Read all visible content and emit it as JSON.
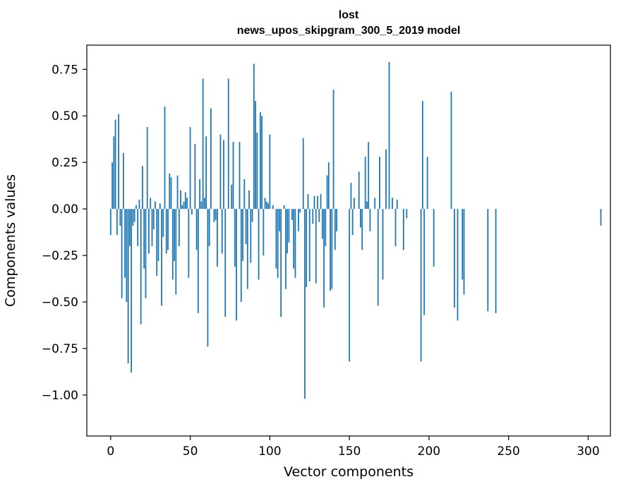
{
  "chart_data": {
    "type": "bar",
    "title_lines": [
      "lost",
      "news_upos_skipgram_300_5_2019 model"
    ],
    "xlabel": "Vector components",
    "ylabel": "Components values",
    "xlim": [
      -15,
      314
    ],
    "ylim": [
      -1.22,
      0.88
    ],
    "xticks": [
      0,
      50,
      100,
      150,
      200,
      250,
      300
    ],
    "xtick_labels": [
      "0",
      "50",
      "100",
      "150",
      "200",
      "250",
      "300"
    ],
    "yticks": [
      -1.0,
      -0.75,
      -0.5,
      -0.25,
      0.0,
      0.25,
      0.5,
      0.75
    ],
    "ytick_labels": [
      "−1.00",
      "−0.75",
      "−0.50",
      "−0.25",
      "0.00",
      "0.25",
      "0.50",
      "0.75"
    ],
    "bar_color": "#1f77b4",
    "grid": false,
    "values": [
      -0.14,
      0.25,
      0.39,
      0.48,
      -0.14,
      0.51,
      -0.09,
      -0.48,
      0.3,
      -0.37,
      -0.5,
      -0.83,
      -0.2,
      -0.88,
      -0.09,
      -0.07,
      0.02,
      -0.2,
      0.05,
      -0.62,
      0.23,
      -0.32,
      -0.48,
      0.44,
      -0.24,
      0.06,
      -0.2,
      -0.11,
      0.04,
      -0.36,
      -0.28,
      0.03,
      -0.52,
      -0.15,
      0.55,
      -0.24,
      -0.22,
      0.19,
      0.17,
      -0.38,
      -0.28,
      -0.46,
      0.18,
      -0.2,
      0.1,
      0.02,
      0.04,
      0.09,
      0.06,
      -0.37,
      0.44,
      -0.03,
      0.0,
      0.35,
      -0.22,
      -0.56,
      0.16,
      0.04,
      0.7,
      0.06,
      0.39,
      -0.74,
      -0.2,
      0.54,
      0.0,
      -0.07,
      -0.06,
      -0.31,
      0.0,
      0.4,
      -0.24,
      0.37,
      -0.58,
      0.0,
      0.7,
      0.0,
      0.13,
      0.36,
      -0.31,
      -0.6,
      0.0,
      0.36,
      -0.5,
      -0.28,
      0.16,
      -0.19,
      -0.43,
      0.1,
      -0.29,
      -0.07,
      0.78,
      0.58,
      0.41,
      -0.38,
      0.52,
      0.5,
      -0.25,
      0.06,
      0.04,
      0.03,
      0.4,
      0.0,
      0.02,
      0.0,
      -0.32,
      -0.37,
      -0.12,
      -0.58,
      0.0,
      0.02,
      -0.43,
      -0.24,
      -0.18,
      0.0,
      -0.06,
      -0.32,
      -0.37,
      0.0,
      -0.12,
      -0.02,
      0.0,
      0.38,
      -1.02,
      -0.42,
      0.08,
      -0.39,
      0.0,
      -0.08,
      0.07,
      -0.4,
      0.07,
      -0.07,
      0.08,
      -0.16,
      -0.53,
      -0.2,
      0.18,
      0.25,
      -0.44,
      -0.43,
      0.64,
      -0.22,
      -0.12,
      0.0,
      0.0,
      0.0,
      0.0,
      0.0,
      0.0,
      0.0,
      -0.82,
      0.14,
      -0.14,
      0.06,
      0.0,
      0.0,
      0.2,
      -0.1,
      -0.22,
      0.0,
      0.28,
      0.04,
      0.36,
      -0.12,
      0.0,
      0.0,
      0.06,
      0.0,
      -0.52,
      0.28,
      0.0,
      -0.38,
      0.0,
      0.32,
      0.0,
      0.79,
      0.0,
      0.06,
      0.0,
      -0.2,
      0.05,
      0.0,
      0.0,
      0.0,
      -0.22,
      0.0,
      -0.05,
      0.0,
      0.0,
      0.0,
      0.0,
      0.0,
      0.0,
      0.0,
      0.0,
      -0.82,
      0.58,
      -0.57,
      0.0,
      0.28,
      0.0,
      0.0,
      0.0,
      -0.31,
      0.0,
      0.0,
      0.0,
      0.0,
      0.0,
      0.0,
      0.0,
      0.0,
      0.0,
      0.0,
      0.63,
      0.0,
      -0.53,
      0.0,
      -0.6,
      0.0,
      0.0,
      -0.38,
      -0.46,
      0.0,
      0.0,
      0.0,
      0.0,
      0.0,
      0.0,
      0.0,
      0.0,
      0.0,
      0.0,
      0.0,
      0.0,
      0.0,
      0.0,
      -0.55,
      0.0,
      0.0,
      0.0,
      0.0,
      -0.56,
      0.0,
      0.0,
      0.0,
      0.0,
      0.0,
      0.0,
      0.0,
      0.0,
      0.0,
      0.0,
      0.0,
      0.0,
      0.0,
      0.0,
      0.0,
      0.0,
      0.0,
      0.0,
      0.0,
      0.0,
      0.0,
      0.0,
      0.0,
      0.0,
      0.0,
      0.0,
      0.0,
      0.0,
      0.0,
      0.0,
      0.0,
      0.0,
      0.0,
      0.0,
      0.0,
      0.0,
      0.0,
      0.0,
      0.0,
      0.0,
      0.0,
      0.0,
      0.0,
      0.0,
      0.0,
      0.0,
      0.0,
      0.0,
      0.0,
      0.0,
      0.0,
      0.0,
      0.0,
      0.0,
      0.0,
      0.0,
      0.0,
      0.0,
      0.0,
      0.0,
      0.0,
      0.0,
      0.0,
      0.0,
      0.0,
      -0.09
    ]
  }
}
